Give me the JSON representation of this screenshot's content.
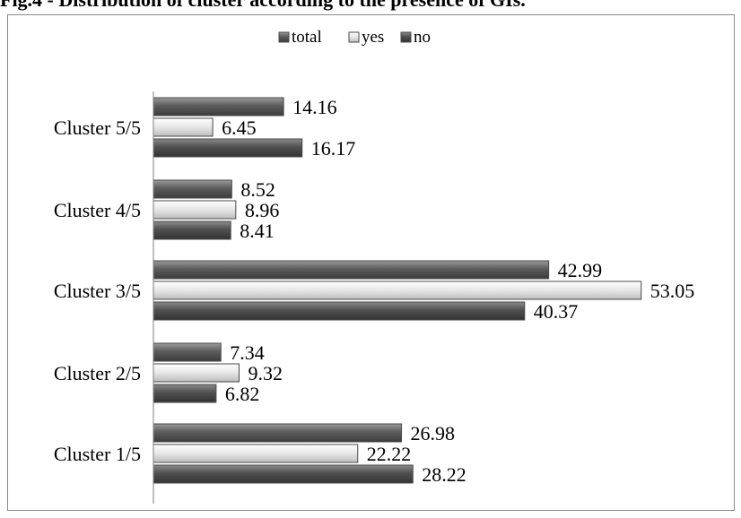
{
  "page": {
    "title": "Fig.4 - Distribution of cluster according to the presence of GIs."
  },
  "chart_data": {
    "type": "bar",
    "orientation": "horizontal",
    "title": "",
    "xlabel": "",
    "ylabel": "",
    "categories": [
      "Cluster 1/5",
      "Cluster 2/5",
      "Cluster 3/5",
      "Cluster 4/5",
      "Cluster 5/5"
    ],
    "series": [
      {
        "name": "total",
        "values": [
          26.98,
          7.34,
          42.99,
          8.52,
          14.16
        ],
        "color": "#6e6e6e"
      },
      {
        "name": "yes",
        "values": [
          22.22,
          9.32,
          53.05,
          8.96,
          6.45
        ],
        "color": "#d9d9d9"
      },
      {
        "name": "no",
        "values": [
          28.22,
          6.82,
          40.37,
          8.41,
          16.17
        ],
        "color": "#555555"
      }
    ],
    "legend_order": [
      "total",
      "yes",
      "no"
    ],
    "legend_position": "top",
    "xlim": [
      0,
      60
    ],
    "grid": false
  }
}
